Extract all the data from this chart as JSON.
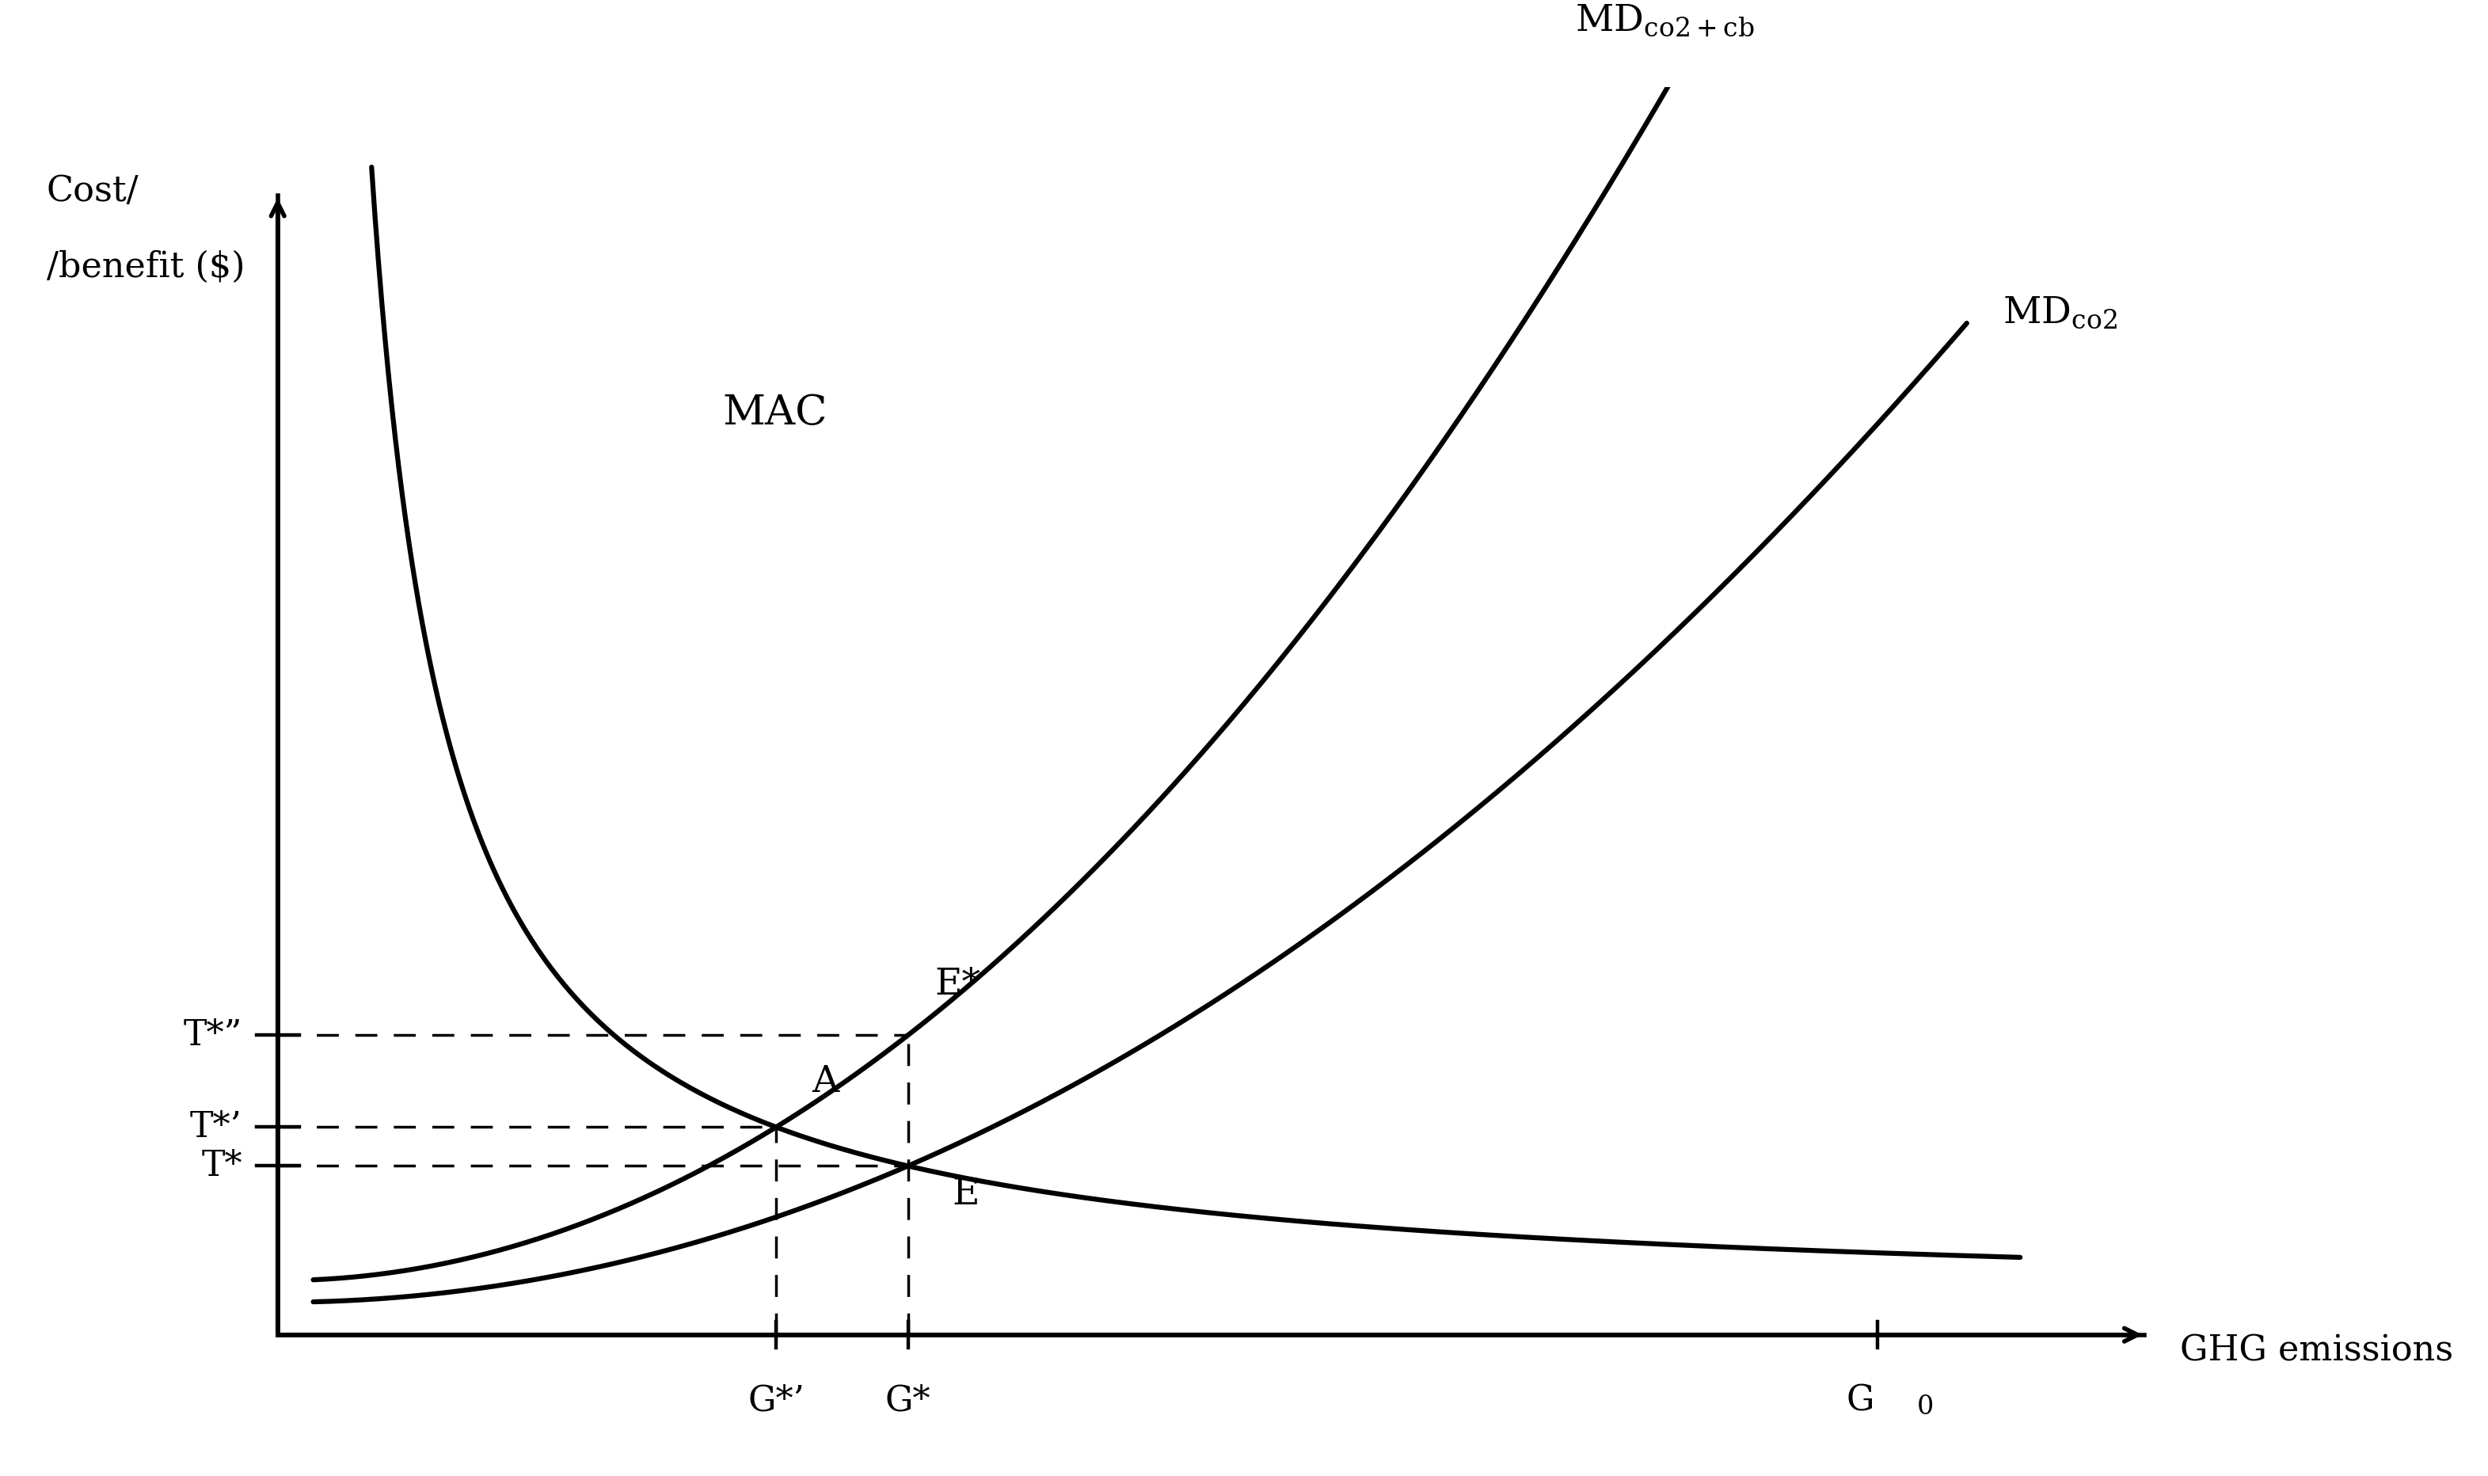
{
  "xlim": [
    0,
    10
  ],
  "ylim": [
    0,
    10
  ],
  "bg_color": "#ffffff",
  "line_color": "#000000",
  "curve_lw": 4.5,
  "axis_lw": 4.0,
  "dash_lw": 2.5,
  "font_size": 32,
  "label_font_size": 34,
  "mac_label": "MAC",
  "md_co2cb_label_main": "MD",
  "md_co2cb_sub": "co2+cb",
  "md_co2_label_main": "MD",
  "md_co2_sub": "co2",
  "point_A": "A",
  "point_E": "E",
  "point_Estar": "E*",
  "Tstar_prime": "T*’",
  "Tstar_dprime": "T*”",
  "Tstar": "T*",
  "Gstar_prime": "G*’",
  "Gstar": "G*",
  "G0": "G",
  "G0_sub": "0",
  "ylabel_line1": "Cost/",
  "ylabel_line2": "/benefit ($)",
  "xlabel": "GHG emissions"
}
